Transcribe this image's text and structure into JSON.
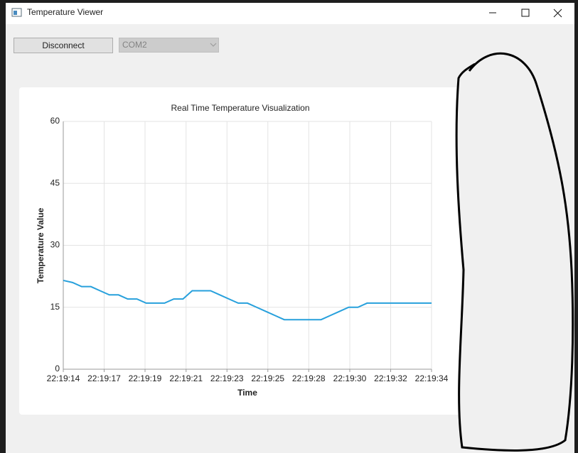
{
  "window": {
    "title": "Temperature Viewer"
  },
  "toolbar": {
    "button": "Disconnect",
    "port": "COM2"
  },
  "chart_data": {
    "type": "line",
    "title": "Real Time Temperature Visualization",
    "x_label": "Time",
    "y_label": "Temperature Value",
    "color": "#27a0dc",
    "grid": true,
    "x": [
      0,
      0.5,
      1,
      1.5,
      2,
      2.5,
      3,
      3.5,
      4,
      4.5,
      5,
      5.5,
      6,
      6.5,
      7,
      7.5,
      8,
      8.5,
      9,
      9.5,
      10,
      10.5,
      11,
      11.5,
      12,
      12.5,
      13,
      13.5,
      14,
      14.5,
      15,
      15.5,
      16,
      16.5,
      17,
      17.5,
      18,
      18.5,
      19,
      19.5,
      20
    ],
    "values": [
      21.5,
      21,
      20,
      20,
      19,
      18,
      18,
      17,
      17,
      16,
      16,
      16,
      17,
      17,
      19,
      19,
      19,
      18,
      17,
      16,
      16,
      15,
      14,
      13,
      12,
      12,
      12,
      12,
      12,
      13,
      14,
      15,
      15,
      16,
      16,
      16,
      16,
      16,
      16,
      16,
      16
    ],
    "xlim": [
      0,
      20
    ],
    "xticks": [
      {
        "value": 0,
        "label": "22:19:14"
      },
      {
        "value": 2.22,
        "label": "22:19:17"
      },
      {
        "value": 4.44,
        "label": "22:19:19"
      },
      {
        "value": 6.67,
        "label": "22:19:21"
      },
      {
        "value": 8.89,
        "label": "22:19:23"
      },
      {
        "value": 11.11,
        "label": "22:19:25"
      },
      {
        "value": 13.33,
        "label": "22:19:28"
      },
      {
        "value": 15.56,
        "label": "22:19:30"
      },
      {
        "value": 17.78,
        "label": "22:19:32"
      },
      {
        "value": 20,
        "label": "22:19:34"
      }
    ],
    "ylim": [
      0,
      60
    ],
    "yticks": [
      0,
      15,
      30,
      45,
      60
    ]
  }
}
